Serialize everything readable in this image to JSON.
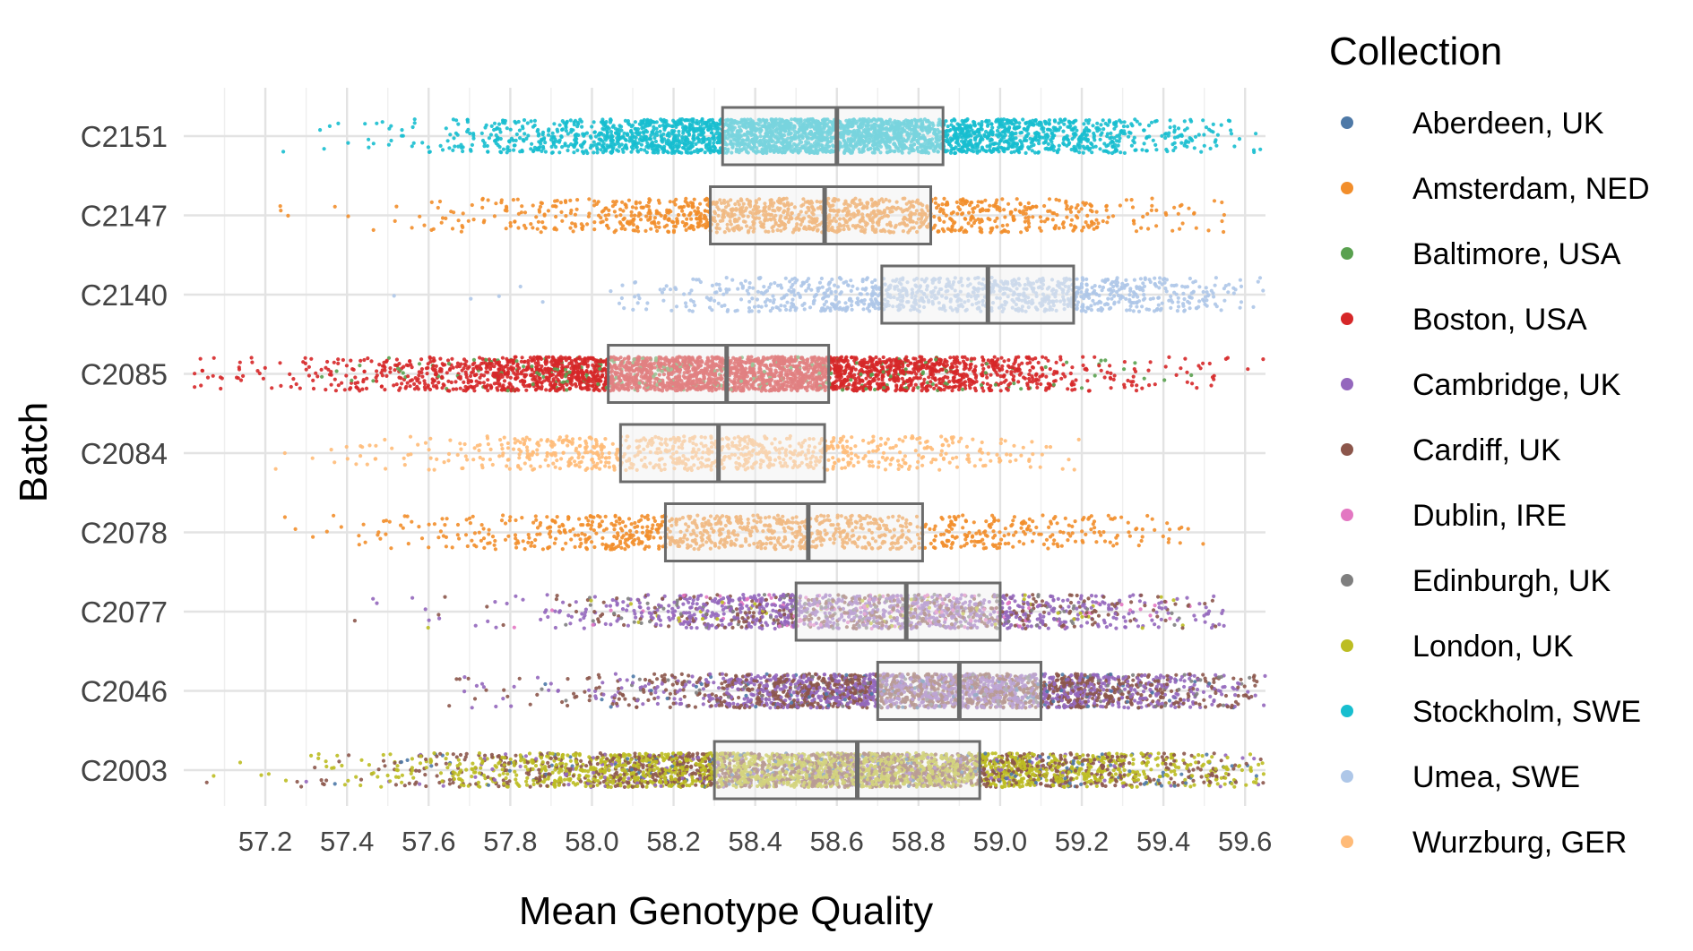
{
  "chart_data": {
    "type": "scatter",
    "subtype": "jittered strip plot with box plot overlay",
    "title": "",
    "xlabel": "Mean Genotype Quality",
    "ylabel": "Batch",
    "xlim": [
      57.0,
      59.65
    ],
    "xticks": [
      "57.2",
      "57.4",
      "57.6",
      "57.8",
      "58.0",
      "58.2",
      "58.4",
      "58.6",
      "58.8",
      "59.0",
      "59.2",
      "59.4",
      "59.6"
    ],
    "categories": [
      "C2151",
      "C2147",
      "C2140",
      "C2085",
      "C2084",
      "C2078",
      "C2077",
      "C2046",
      "C2003"
    ],
    "grid": true,
    "legend": {
      "title": "Collection",
      "position": "right",
      "entries": [
        {
          "label": "Aberdeen, UK",
          "color": "#4e79a7"
        },
        {
          "label": "Amsterdam, NED",
          "color": "#f28e2b"
        },
        {
          "label": "Baltimore, USA",
          "color": "#59a14f"
        },
        {
          "label": "Boston, USA",
          "color": "#d62728"
        },
        {
          "label": "Cambridge, UK",
          "color": "#9467bd"
        },
        {
          "label": "Cardiff, UK",
          "color": "#8c564b"
        },
        {
          "label": "Dublin, IRE",
          "color": "#e377c2"
        },
        {
          "label": "Edinburgh, UK",
          "color": "#7f7f7f"
        },
        {
          "label": "London, UK",
          "color": "#bcbd22"
        },
        {
          "label": "Stockholm, SWE",
          "color": "#17becf"
        },
        {
          "label": "Umea, SWE",
          "color": "#aec7e8"
        },
        {
          "label": "Wurzburg, GER",
          "color": "#ffbb78"
        }
      ]
    },
    "boxes": [
      {
        "batch": "C2151",
        "q1": 58.32,
        "median": 58.6,
        "q3": 58.86
      },
      {
        "batch": "C2147",
        "q1": 58.29,
        "median": 58.57,
        "q3": 58.83
      },
      {
        "batch": "C2140",
        "q1": 58.71,
        "median": 58.97,
        "q3": 59.18
      },
      {
        "batch": "C2085",
        "q1": 58.04,
        "median": 58.33,
        "q3": 58.58
      },
      {
        "batch": "C2084",
        "q1": 58.07,
        "median": 58.31,
        "q3": 58.57
      },
      {
        "batch": "C2078",
        "q1": 58.18,
        "median": 58.53,
        "q3": 58.81
      },
      {
        "batch": "C2077",
        "q1": 58.5,
        "median": 58.77,
        "q3": 59.0
      },
      {
        "batch": "C2046",
        "q1": 58.7,
        "median": 58.9,
        "q3": 59.1
      },
      {
        "batch": "C2003",
        "q1": 58.3,
        "median": 58.65,
        "q3": 58.95
      }
    ],
    "point_groups": [
      {
        "batch": "C2151",
        "n": 3000,
        "min": 57.03,
        "max": 59.65,
        "mean": 58.58,
        "sd": 0.42,
        "mix": [
          {
            "collection": "Stockholm, SWE",
            "share": 1.0
          }
        ]
      },
      {
        "batch": "C2147",
        "n": 1200,
        "min": 57.1,
        "max": 59.55,
        "mean": 58.55,
        "sd": 0.42,
        "mix": [
          {
            "collection": "Amsterdam, NED",
            "share": 1.0
          }
        ]
      },
      {
        "batch": "C2140",
        "n": 1000,
        "min": 57.08,
        "max": 59.65,
        "mean": 58.92,
        "sd": 0.38,
        "mix": [
          {
            "collection": "Umea, SWE",
            "share": 1.0
          }
        ]
      },
      {
        "batch": "C2085",
        "n": 3200,
        "min": 57.0,
        "max": 59.65,
        "mean": 58.3,
        "sd": 0.45,
        "mix": [
          {
            "collection": "Boston, USA",
            "share": 0.93
          },
          {
            "collection": "Baltimore, USA",
            "share": 0.07
          }
        ]
      },
      {
        "batch": "C2084",
        "n": 800,
        "min": 57.05,
        "max": 59.2,
        "mean": 58.3,
        "sd": 0.38,
        "mix": [
          {
            "collection": "Wurzburg, GER",
            "share": 1.0
          }
        ]
      },
      {
        "batch": "C2078",
        "n": 1000,
        "min": 57.0,
        "max": 59.5,
        "mean": 58.48,
        "sd": 0.45,
        "mix": [
          {
            "collection": "Amsterdam, NED",
            "share": 1.0
          }
        ]
      },
      {
        "batch": "C2077",
        "n": 1500,
        "min": 57.05,
        "max": 59.55,
        "mean": 58.72,
        "sd": 0.4,
        "mix": [
          {
            "collection": "Cambridge, UK",
            "share": 0.55
          },
          {
            "collection": "Cardiff, UK",
            "share": 0.25
          },
          {
            "collection": "Dublin, IRE",
            "share": 0.08
          },
          {
            "collection": "Edinburgh, UK",
            "share": 0.08
          },
          {
            "collection": "London, UK",
            "share": 0.04
          }
        ]
      },
      {
        "batch": "C2046",
        "n": 2600,
        "min": 57.05,
        "max": 59.65,
        "mean": 58.85,
        "sd": 0.4,
        "mix": [
          {
            "collection": "Cardiff, UK",
            "share": 0.45
          },
          {
            "collection": "Cambridge, UK",
            "share": 0.45
          },
          {
            "collection": "Aberdeen, UK",
            "share": 0.05
          },
          {
            "collection": "Edinburgh, UK",
            "share": 0.05
          }
        ]
      },
      {
        "batch": "C2003",
        "n": 3800,
        "min": 57.0,
        "max": 59.65,
        "mean": 58.6,
        "sd": 0.5,
        "mix": [
          {
            "collection": "London, UK",
            "share": 0.55
          },
          {
            "collection": "Cardiff, UK",
            "share": 0.35
          },
          {
            "collection": "Aberdeen, UK",
            "share": 0.05
          },
          {
            "collection": "Cambridge, UK",
            "share": 0.05
          }
        ]
      }
    ]
  }
}
